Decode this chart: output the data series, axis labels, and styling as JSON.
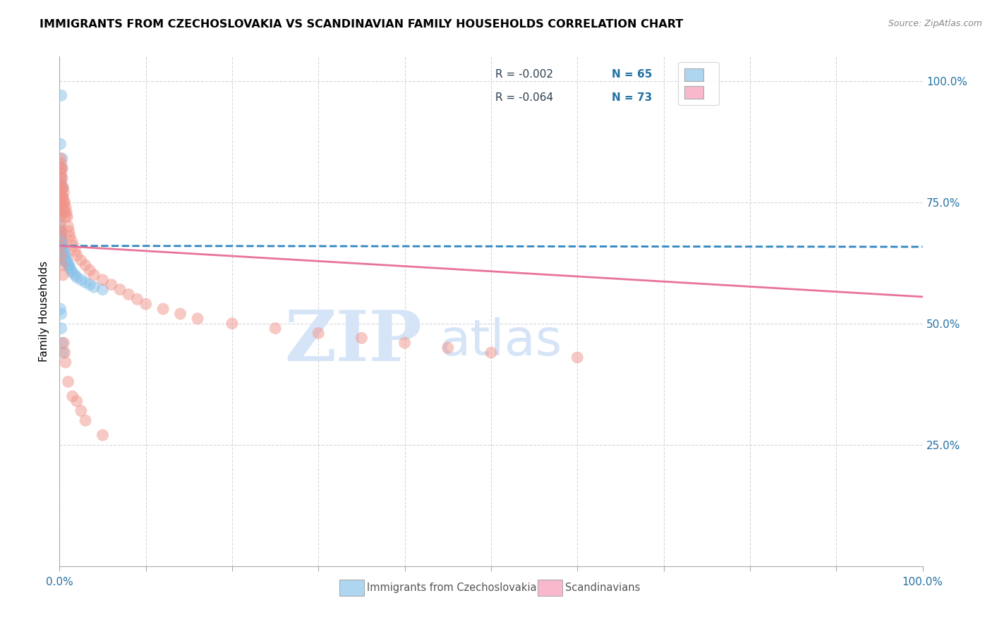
{
  "title": "IMMIGRANTS FROM CZECHOSLOVAKIA VS SCANDINAVIAN FAMILY HOUSEHOLDS CORRELATION CHART",
  "source": "Source: ZipAtlas.com",
  "ylabel": "Family Households",
  "right_ytick_vals": [
    0.25,
    0.5,
    0.75,
    1.0
  ],
  "right_ytick_labels": [
    "25.0%",
    "50.0%",
    "75.0%",
    "100.0%"
  ],
  "xtick_vals": [
    0.0,
    0.1,
    0.2,
    0.3,
    0.4,
    0.5,
    0.6,
    0.7,
    0.8,
    0.9,
    1.0
  ],
  "xlabel_blue": "Immigrants from Czechoslovakia",
  "xlabel_pink": "Scandinavians",
  "legend_blue_facecolor": "#aed6f1",
  "legend_pink_facecolor": "#f9b8cb",
  "legend_blue_R": "R = -0.002",
  "legend_blue_N": "N = 65",
  "legend_pink_R": "R = -0.064",
  "legend_pink_N": "N = 73",
  "blue_scatter_color": "#85c1e9",
  "pink_scatter_color": "#f1948a",
  "blue_line_color": "#2e86c1",
  "pink_line_color": "#e8739a",
  "text_color_R": "#2c3e50",
  "text_color_N": "#2471a3",
  "watermark_zip": "ZIP",
  "watermark_atlas": "atlas",
  "watermark_color": "#d6e4f7",
  "grid_color": "#d5d8dc",
  "bg_color": "#ffffff",
  "xlim": [
    0.0,
    1.0
  ],
  "ylim": [
    0.0,
    1.05
  ],
  "blue_x": [
    0.002,
    0.001,
    0.003,
    0.003,
    0.002,
    0.002,
    0.004,
    0.003,
    0.001,
    0.001,
    0.001,
    0.001,
    0.001,
    0.001,
    0.001,
    0.001,
    0.001,
    0.001,
    0.001,
    0.001,
    0.001,
    0.001,
    0.001,
    0.001,
    0.001,
    0.001,
    0.001,
    0.002,
    0.002,
    0.002,
    0.002,
    0.002,
    0.002,
    0.003,
    0.003,
    0.003,
    0.003,
    0.004,
    0.004,
    0.004,
    0.005,
    0.005,
    0.006,
    0.006,
    0.007,
    0.007,
    0.008,
    0.009,
    0.01,
    0.011,
    0.012,
    0.013,
    0.015,
    0.018,
    0.02,
    0.025,
    0.03,
    0.035,
    0.04,
    0.05,
    0.001,
    0.002,
    0.002,
    0.003,
    0.004
  ],
  "blue_y": [
    0.97,
    0.87,
    0.84,
    0.82,
    0.8,
    0.78,
    0.78,
    0.76,
    0.79,
    0.78,
    0.76,
    0.75,
    0.74,
    0.73,
    0.72,
    0.7,
    0.69,
    0.68,
    0.67,
    0.66,
    0.65,
    0.64,
    0.63,
    0.68,
    0.67,
    0.66,
    0.65,
    0.69,
    0.68,
    0.67,
    0.66,
    0.65,
    0.64,
    0.67,
    0.66,
    0.65,
    0.64,
    0.66,
    0.65,
    0.64,
    0.65,
    0.64,
    0.64,
    0.63,
    0.64,
    0.63,
    0.63,
    0.625,
    0.62,
    0.62,
    0.615,
    0.61,
    0.605,
    0.6,
    0.595,
    0.59,
    0.585,
    0.58,
    0.575,
    0.57,
    0.53,
    0.52,
    0.49,
    0.46,
    0.44
  ],
  "pink_x": [
    0.001,
    0.001,
    0.001,
    0.001,
    0.001,
    0.001,
    0.001,
    0.001,
    0.001,
    0.001,
    0.002,
    0.002,
    0.002,
    0.002,
    0.002,
    0.002,
    0.002,
    0.003,
    0.003,
    0.003,
    0.003,
    0.004,
    0.004,
    0.004,
    0.005,
    0.005,
    0.006,
    0.006,
    0.007,
    0.007,
    0.008,
    0.009,
    0.01,
    0.011,
    0.012,
    0.014,
    0.016,
    0.018,
    0.02,
    0.025,
    0.03,
    0.035,
    0.04,
    0.05,
    0.06,
    0.07,
    0.08,
    0.09,
    0.1,
    0.12,
    0.14,
    0.16,
    0.2,
    0.25,
    0.3,
    0.35,
    0.4,
    0.45,
    0.5,
    0.6,
    0.001,
    0.002,
    0.003,
    0.004,
    0.005,
    0.006,
    0.007,
    0.01,
    0.015,
    0.02,
    0.025,
    0.03,
    0.05
  ],
  "pink_y": [
    0.84,
    0.82,
    0.8,
    0.78,
    0.76,
    0.74,
    0.72,
    0.7,
    0.69,
    0.68,
    0.83,
    0.81,
    0.79,
    0.77,
    0.76,
    0.75,
    0.74,
    0.82,
    0.8,
    0.78,
    0.76,
    0.78,
    0.76,
    0.74,
    0.77,
    0.75,
    0.75,
    0.73,
    0.74,
    0.72,
    0.73,
    0.72,
    0.7,
    0.69,
    0.68,
    0.67,
    0.66,
    0.65,
    0.64,
    0.63,
    0.62,
    0.61,
    0.6,
    0.59,
    0.58,
    0.57,
    0.56,
    0.55,
    0.54,
    0.53,
    0.52,
    0.51,
    0.5,
    0.49,
    0.48,
    0.47,
    0.46,
    0.45,
    0.44,
    0.43,
    0.66,
    0.64,
    0.62,
    0.6,
    0.46,
    0.44,
    0.42,
    0.38,
    0.35,
    0.34,
    0.32,
    0.3,
    0.27
  ],
  "blue_line_x0": 0.0,
  "blue_line_x1": 1.0,
  "blue_line_y0": 0.66,
  "blue_line_y1": 0.658,
  "pink_line_x0": 0.0,
  "pink_line_x1": 1.0,
  "pink_line_y0": 0.66,
  "pink_line_y1": 0.555
}
